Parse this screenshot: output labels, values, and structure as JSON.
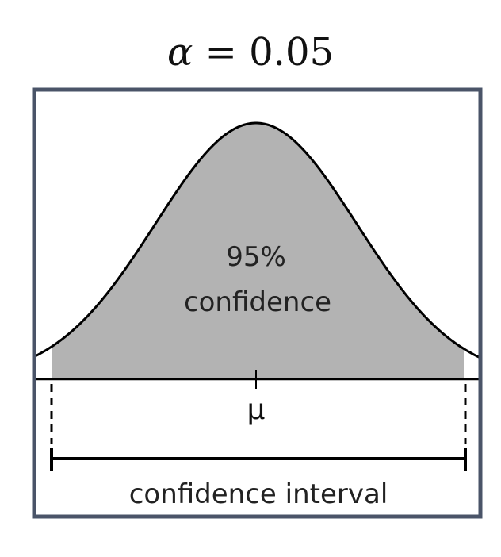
{
  "title": {
    "symbol": "α",
    "rest": " = 0.05"
  },
  "diagram": {
    "center_label_line1": "95%",
    "center_label_line2": "confidence",
    "mean_symbol": "μ",
    "interval_label": "confidence interval",
    "confidence_level_percent": 95
  },
  "colors": {
    "frame": "#4a5468",
    "shaded_region": "#b3b3b3",
    "curve": "#000000",
    "background": "#ffffff"
  }
}
